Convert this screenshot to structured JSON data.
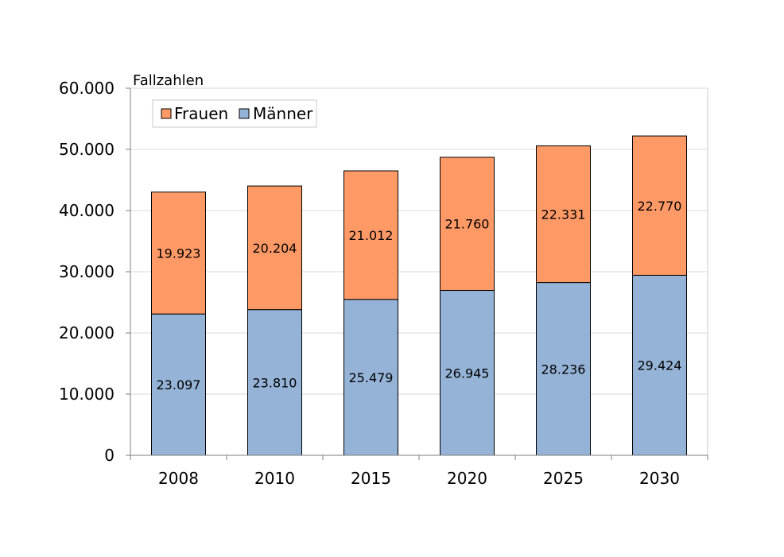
{
  "chart_data": {
    "type": "bar",
    "stacked": true,
    "title": "",
    "xlabel": "",
    "ylabel": "Fallzahlen",
    "categories": [
      "2008",
      "2010",
      "2015",
      "2020",
      "2025",
      "2030"
    ],
    "series": [
      {
        "name": "Männer",
        "values": [
          23097,
          23810,
          25479,
          26945,
          28236,
          29424
        ],
        "labels": [
          "23.097",
          "23.810",
          "25.479",
          "26.945",
          "28.236",
          "29.424"
        ],
        "color": "#95b3d7"
      },
      {
        "name": "Frauen",
        "values": [
          19923,
          20204,
          21012,
          21760,
          22331,
          22770
        ],
        "labels": [
          "19.923",
          "20.204",
          "21.012",
          "21.760",
          "22.331",
          "22.770"
        ],
        "color": "#ff9966"
      }
    ],
    "legend_order": [
      "Frauen",
      "Männer"
    ],
    "ylim": [
      0,
      60000
    ],
    "yticks": [
      0,
      10000,
      20000,
      30000,
      40000,
      50000,
      60000
    ],
    "ytick_labels": [
      "0",
      "10.000",
      "20.000",
      "30.000",
      "40.000",
      "50.000",
      "60.000"
    ],
    "grid": true,
    "legend_position": "top-left"
  }
}
